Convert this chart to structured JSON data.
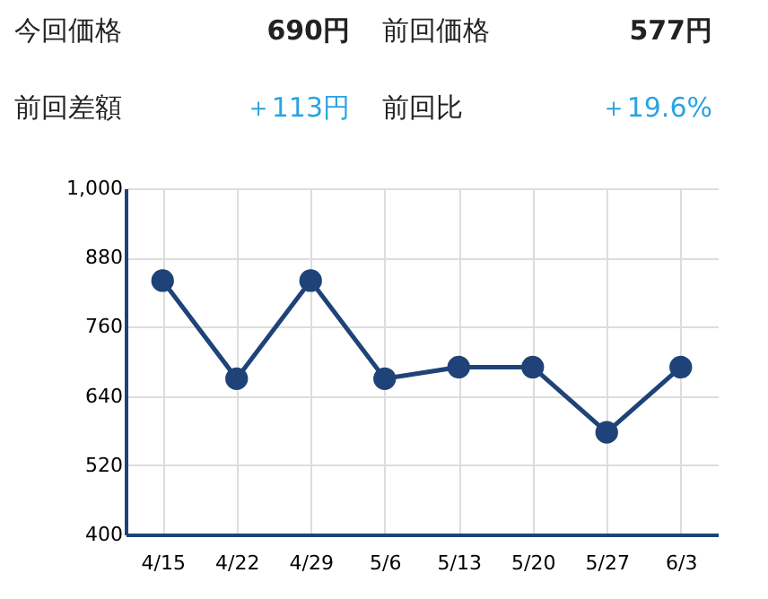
{
  "chart_data": {
    "type": "line",
    "annotations": [
      "今回価格",
      "690円",
      "前回価格",
      "577円",
      "前回差額",
      "＋113円",
      "前回比",
      "＋19.6%"
    ],
    "categories": [
      "4/15",
      "4/22",
      "4/29",
      "5/6",
      "5/13",
      "5/20",
      "5/27",
      "6/3"
    ],
    "series": [
      {
        "color": "#1f4378",
        "values": [
          840,
          670,
          840,
          670,
          690,
          690,
          577,
          690
        ]
      }
    ],
    "ylim": [
      400,
      1000
    ],
    "yticks": [
      400,
      520,
      640,
      760,
      880,
      {
        "value": 1000,
        "label": "1,000"
      }
    ],
    "grid": true,
    "marker": "circle",
    "line_style": "solid"
  }
}
